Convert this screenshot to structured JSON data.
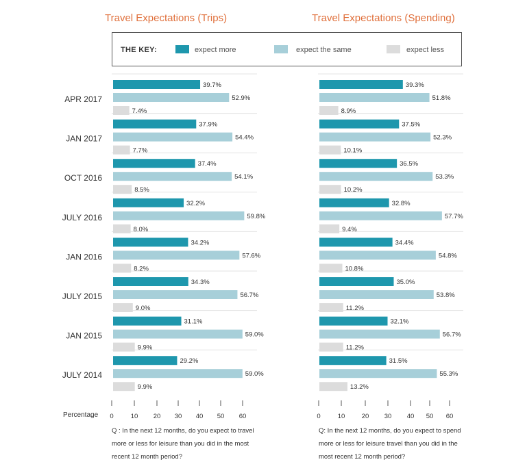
{
  "titles": {
    "trips": "Travel Expectations (Trips)",
    "spending": "Travel Expectations (Spending)"
  },
  "key": {
    "title": "THE KEY:",
    "items": [
      {
        "label": "expect more",
        "color": "#1e97ad"
      },
      {
        "label": "expect the same",
        "color": "#a7cfd9"
      },
      {
        "label": "expect less",
        "color": "#dcdcdc"
      }
    ]
  },
  "x_axis_label": "Percentage",
  "questions": {
    "trips": "Q : In the next 12 months, do you expect to travel more or less for leisure than you did in the most recent 12 month period?",
    "spending": "Q: In the next 12 months, do you expect to spend more or less for leisure travel than you did in the most recent 12 month period?"
  },
  "chart_data": [
    {
      "type": "bar",
      "orientation": "horizontal",
      "title": "Travel Expectations (Trips)",
      "xlabel": "Percentage",
      "xlim": [
        0,
        60
      ],
      "xticks": [
        0,
        10,
        20,
        30,
        40,
        50,
        60
      ],
      "categories": [
        "APR 2017",
        "JAN 2017",
        "OCT 2016",
        "JULY 2016",
        "JAN 2016",
        "JULY 2015",
        "JAN 2015",
        "JULY 2014"
      ],
      "series": [
        {
          "name": "expect more",
          "color": "#1e97ad",
          "values": [
            39.7,
            37.9,
            37.4,
            32.2,
            34.2,
            34.3,
            31.1,
            29.2
          ],
          "labels": [
            "39.7%",
            "37.9%",
            "37.4%",
            "32.2%",
            "34.2%",
            "34.3%",
            "31.1%",
            "29.2%"
          ]
        },
        {
          "name": "expect the same",
          "color": "#a7cfd9",
          "values": [
            52.9,
            54.4,
            54.1,
            59.8,
            57.6,
            56.7,
            59.0,
            59.0
          ],
          "labels": [
            "52.9%",
            "54.4%",
            "54.1%",
            "59.8%",
            "57.6%",
            "56.7%",
            "59.0%",
            "59.0%"
          ]
        },
        {
          "name": "expect less",
          "color": "#dcdcdc",
          "values": [
            7.4,
            7.7,
            8.5,
            8.0,
            8.2,
            9.0,
            9.9,
            9.9
          ],
          "labels": [
            "7.4%",
            "7.7%",
            "8.5%",
            "8.0%",
            "8.2%",
            "9.0%",
            "9.9%",
            "9.9%"
          ]
        }
      ]
    },
    {
      "type": "bar",
      "orientation": "horizontal",
      "title": "Travel Expectations (Spending)",
      "xlabel": "Percentage",
      "xlim": [
        0,
        60
      ],
      "xticks": [
        0,
        10,
        20,
        30,
        40,
        50,
        60
      ],
      "categories": [
        "APR 2017",
        "JAN 2017",
        "OCT 2016",
        "JULY 2016",
        "JAN 2016",
        "JULY 2015",
        "JAN 2015",
        "JULY 2014"
      ],
      "series": [
        {
          "name": "expect more",
          "color": "#1e97ad",
          "values": [
            39.3,
            37.5,
            36.5,
            32.8,
            34.4,
            35.0,
            32.1,
            31.5
          ],
          "labels": [
            "39.3%",
            "37.5%",
            "36.5%",
            "32.8%",
            "34.4%",
            "35.0%",
            "32.1%",
            "31.5%"
          ]
        },
        {
          "name": "expect the same",
          "color": "#a7cfd9",
          "values": [
            51.8,
            52.3,
            53.3,
            57.7,
            54.8,
            53.8,
            56.7,
            55.3
          ],
          "labels": [
            "51.8%",
            "52.3%",
            "53.3%",
            "57.7%",
            "54.8%",
            "53.8%",
            "56.7%",
            "55.3%"
          ]
        },
        {
          "name": "expect less",
          "color": "#dcdcdc",
          "values": [
            8.9,
            10.1,
            10.2,
            9.4,
            10.8,
            11.2,
            11.2,
            13.2
          ],
          "labels": [
            "8.9%",
            "10.1%",
            "10.2%",
            "9.4%",
            "10.8%",
            "11.2%",
            "11.2%",
            "13.2%"
          ]
        }
      ]
    }
  ]
}
